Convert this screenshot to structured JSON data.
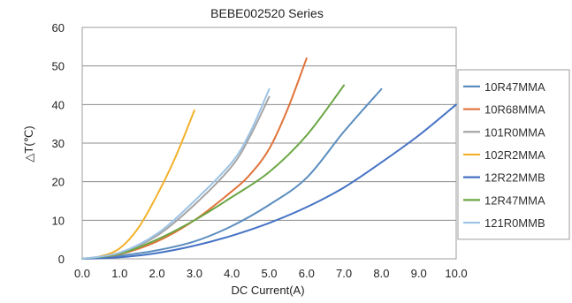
{
  "chart_data": {
    "type": "line",
    "title": "BEBE002520 Series",
    "xlabel": "DC Current(A)",
    "ylabel": "△T(℃)",
    "xlim": [
      0,
      10
    ],
    "ylim": [
      0,
      60
    ],
    "x_ticks": [
      "0.0",
      "1.0",
      "2.0",
      "3.0",
      "4.0",
      "5.0",
      "6.0",
      "7.0",
      "8.0",
      "9.0",
      "10.0"
    ],
    "y_ticks": [
      "0",
      "10",
      "20",
      "30",
      "40",
      "50",
      "60"
    ],
    "grid": "horizontal",
    "legend_position": "right",
    "series": [
      {
        "name": "10R47MMA",
        "color": "#5B8DBE",
        "x": [
          0,
          1,
          2,
          3,
          4,
          5,
          6,
          7,
          8
        ],
        "y": [
          0,
          0.8,
          2.2,
          4.5,
          8.5,
          14,
          21,
          33,
          44
        ]
      },
      {
        "name": "10R68MMA",
        "color": "#E0733A",
        "x": [
          0,
          1,
          2,
          3,
          4,
          4.5,
          5,
          5.5,
          6
        ],
        "y": [
          0,
          1.2,
          4.5,
          10,
          17.5,
          22,
          28.5,
          39,
          52
        ]
      },
      {
        "name": "101R0MMA",
        "color": "#A5A5A5",
        "x": [
          0,
          1,
          2,
          3,
          4,
          4.5,
          5
        ],
        "y": [
          0,
          1.5,
          6,
          14,
          24,
          32,
          42
        ]
      },
      {
        "name": "102R2MMA",
        "color": "#F2B12A",
        "x": [
          0,
          0.5,
          1,
          1.5,
          2,
          2.5,
          3
        ],
        "y": [
          0,
          0.7,
          2.7,
          8,
          16.5,
          26.5,
          38.5
        ]
      },
      {
        "name": "12R22MMB",
        "color": "#4472C4",
        "x": [
          0,
          1,
          2,
          3,
          4,
          5,
          6,
          7,
          8,
          9,
          10
        ],
        "y": [
          0,
          0.4,
          1.5,
          3.4,
          6,
          9.3,
          13.4,
          18.5,
          25,
          32,
          40
        ]
      },
      {
        "name": "12R47MMA",
        "color": "#6BA644",
        "x": [
          0,
          1,
          2,
          3,
          4,
          5,
          6,
          7
        ],
        "y": [
          0,
          1.3,
          5,
          10,
          16,
          22.5,
          32,
          45
        ]
      },
      {
        "name": "121R0MMB",
        "color": "#9DC3E6",
        "x": [
          0,
          1,
          2,
          3,
          4,
          4.5,
          5
        ],
        "y": [
          0,
          1.6,
          6.5,
          15,
          25,
          33,
          44
        ]
      }
    ]
  }
}
